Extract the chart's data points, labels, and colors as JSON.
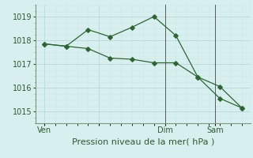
{
  "line1_x": [
    0,
    1,
    2,
    3,
    4,
    5,
    6,
    7,
    8,
    9
  ],
  "line1_y": [
    1017.85,
    1017.75,
    1018.45,
    1018.15,
    1018.55,
    1019.0,
    1018.2,
    1016.45,
    1016.05,
    1015.15
  ],
  "line2_x": [
    0,
    1,
    2,
    3,
    4,
    5,
    6,
    7,
    8,
    9
  ],
  "line2_y": [
    1017.85,
    1017.75,
    1017.65,
    1017.25,
    1017.2,
    1017.05,
    1017.05,
    1016.45,
    1015.55,
    1015.15
  ],
  "line_color": "#2d6632",
  "bg_color": "#d8efef",
  "grid_color": "#b8d8d8",
  "grid_minor_color": "#cce5e5",
  "tick_label_color": "#2d5a2d",
  "xlabel": "Pression niveau de la mer( hPa )",
  "ylim": [
    1014.5,
    1019.5
  ],
  "yticks": [
    1015,
    1016,
    1017,
    1018,
    1019
  ],
  "xtick_positions": [
    0,
    2.5,
    5.5,
    7.8
  ],
  "xtick_labels": [
    "Ven",
    "",
    "Dim",
    "Sam"
  ],
  "vline_x_dim": 5.5,
  "vline_x_sam": 7.8,
  "axis_fontsize": 7,
  "xlabel_fontsize": 8
}
